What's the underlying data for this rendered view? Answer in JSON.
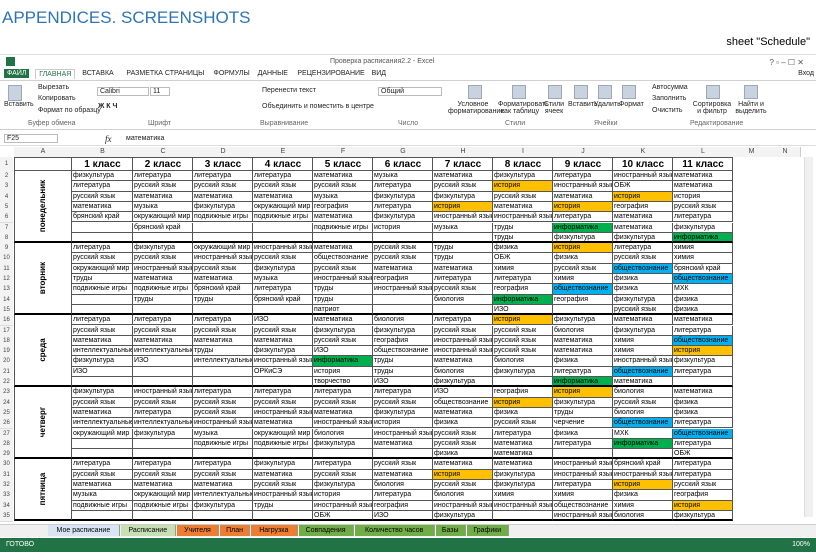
{
  "header": {
    "title": "APPENDICES. SCREENSHOTS",
    "caption": "sheet \"Schedule\""
  },
  "window": {
    "title": "Проверка расписания2.2 - Excel",
    "sign_in": "Вход",
    "tabs": [
      "ФАЙЛ",
      "ГЛАВНАЯ",
      "ВСТАВКА",
      "РАЗМЕТКА СТРАНИЦЫ",
      "ФОРМУЛЫ",
      "ДАННЫЕ",
      "РЕЦЕНЗИРОВАНИЕ",
      "ВИД"
    ]
  },
  "ribbon": {
    "clipboard": {
      "paste": "Вставить",
      "cut": "Вырезать",
      "copy": "Копировать",
      "format_painter": "Формат по образцу",
      "group": "Буфер обмена"
    },
    "font": {
      "name": "Calibri",
      "size": "11",
      "group": "Шрифт"
    },
    "alignment": {
      "wrap": "Перенести текст",
      "merge": "Объединить и поместить в центре",
      "group": "Выравнивание"
    },
    "number": {
      "format": "Общий",
      "group": "Число"
    },
    "styles": {
      "conditional": "Условное форматирование",
      "as_table": "Форматировать как таблицу",
      "cell_styles": "Стили ячеек",
      "group": "Стили"
    },
    "cells": {
      "insert": "Вставить",
      "delete": "Удалить",
      "format": "Формат",
      "group": "Ячейки"
    },
    "editing": {
      "autosum": "Автосумма",
      "fill": "Заполнить",
      "clear": "Очистить",
      "sort": "Сортировка и фильтр",
      "find": "Найти и выделить",
      "group": "Редактирование"
    }
  },
  "formula_bar": {
    "cell": "F25",
    "fx": "fx",
    "formula": "математика"
  },
  "sheet": {
    "columns": [
      "A",
      "B",
      "C",
      "D",
      "E",
      "F",
      "G",
      "H",
      "I",
      "J",
      "K",
      "L",
      "M",
      "N"
    ],
    "row_numbers": [
      1,
      2,
      3,
      4,
      5,
      6,
      7,
      8,
      9,
      10,
      11,
      12,
      13,
      14,
      15,
      16,
      17,
      18,
      19,
      20,
      21,
      22,
      23,
      24,
      25,
      26,
      27,
      28,
      29,
      30,
      31,
      32,
      33,
      34,
      35
    ],
    "class_headers": [
      "1 класс",
      "2 класс",
      "3 класс",
      "4 класс",
      "5 класс",
      "6 класс",
      "7 класс",
      "8 класс",
      "9 класс",
      "10 класс",
      "11 класс"
    ],
    "days": [
      {
        "label": "понедельник",
        "rows": [
          [
            "физкультура",
            "литература",
            "литература",
            "литература",
            "математика",
            "музыка",
            "математика",
            "физкультура",
            "литература",
            "иностранный язык",
            "математика"
          ],
          [
            "литература",
            "русский язык",
            "русский язык",
            "русский язык",
            "русский язык",
            "литература",
            "русский язык",
            {
              "text": "история",
              "fill": "#ffc000"
            },
            "иностранный язык",
            "ОБЖ",
            "математика"
          ],
          [
            "русский язык",
            "математика",
            "математика",
            "математика",
            "музыка",
            "физкультура",
            "физкультура",
            "русский язык",
            "математика",
            {
              "text": "история",
              "fill": "#ffc000"
            },
            "история"
          ],
          [
            "математика",
            "музыка",
            "физкультура",
            "окружающий мир",
            "география",
            "литература",
            {
              "text": "история",
              "fill": "#ffc000"
            },
            "математика",
            {
              "text": "история",
              "fill": "#ffc000"
            },
            "география",
            "русский язык"
          ],
          [
            "брянский край",
            "окружающий мир",
            "подвижные игры",
            "подвижные игры",
            "математика",
            "физкультура",
            "иностранный язык",
            "иностранный язык",
            "литература",
            "математика",
            "литература"
          ],
          [
            null,
            "брянский край",
            null,
            null,
            "подвижные игры",
            "история",
            "музыка",
            "труды",
            {
              "text": "информатика",
              "fill": "#00b050"
            },
            "математика",
            "физкультура"
          ],
          [
            null,
            null,
            null,
            null,
            null,
            null,
            null,
            "труды",
            "физкультура",
            "физкультура",
            {
              "text": "информатика",
              "fill": "#00b050"
            }
          ]
        ]
      },
      {
        "label": "вторник",
        "rows": [
          [
            "литература",
            "физкультура",
            "окружающий мир",
            "иностранный язык",
            "математика",
            "русский язык",
            "труды",
            "физика",
            {
              "text": "история",
              "fill": "#ffc000"
            },
            "литература",
            "химия"
          ],
          [
            "русский язык",
            "русский язык",
            "иностранный язык",
            "русский язык",
            "обществознание",
            "русский язык",
            "труды",
            "ОБЖ",
            "физика",
            "русский язык",
            "химия"
          ],
          [
            "окружающий мир",
            "иностранный язык",
            "русский язык",
            "физкультура",
            "русский язык",
            "математика",
            "математика",
            "химия",
            "русский язык",
            {
              "text": "обществознание",
              "fill": "#00b0f0"
            },
            "брянский край"
          ],
          [
            "труды",
            "математика",
            "математика",
            "музыка",
            "иностранный язык",
            "география",
            "литература",
            "литература",
            "химия",
            "физика",
            {
              "text": "обществознание",
              "fill": "#00b0f0"
            }
          ],
          [
            "подвижные игры",
            "подвижные игры",
            "брянский край",
            "литература",
            "труды",
            "иностранный язык",
            "русский язык",
            "география",
            {
              "text": "обществознание",
              "fill": "#00b0f0"
            },
            "физика",
            "МХК"
          ],
          [
            null,
            "труды",
            "труды",
            "брянский край",
            "труды",
            null,
            "биология",
            {
              "text": "информатика",
              "fill": "#00b050"
            },
            "география",
            "физкультура",
            "физика"
          ],
          [
            null,
            null,
            null,
            null,
            "патриот",
            null,
            null,
            "ИЗО",
            null,
            "русский язык",
            "физика"
          ]
        ]
      },
      {
        "label": "среда",
        "rows": [
          [
            "литература",
            "литература",
            "литература",
            "ИЗО",
            "математика",
            "биология",
            "литература",
            {
              "text": "история",
              "fill": "#ffc000"
            },
            "физкультура",
            "математика",
            "математика"
          ],
          [
            "русский язык",
            "русский язык",
            "русский язык",
            "русский язык",
            "физкультура",
            "физкультура",
            "русский язык",
            "русский язык",
            "биология",
            "физкультура",
            "литература"
          ],
          [
            "математика",
            "математика",
            "математика",
            "математика",
            "русский язык",
            "география",
            "иностранный язык",
            "русский язык",
            "математика",
            "химия",
            {
              "text": "обществознание",
              "fill": "#00b0f0"
            }
          ],
          [
            "интеллектуальные",
            "интеллектуальные",
            "труды",
            "физкультура",
            "ИЗО",
            "обществознание",
            "иностранный язык",
            "русский язык",
            "математика",
            "химия",
            {
              "text": "история",
              "fill": "#ffc000"
            }
          ],
          [
            "физкультура",
            "ИЗО",
            "интеллектуальные",
            "иностранный язык",
            {
              "text": "информатика",
              "fill": "#00b050"
            },
            "труды",
            "математика",
            "биология",
            "физика",
            "иностранный язык",
            "физкультура"
          ],
          [
            "ИЗО",
            null,
            null,
            "ОРКиСЭ",
            "история",
            "труды",
            "биология",
            "физкультура",
            "литература",
            {
              "text": "обществознание",
              "fill": "#00b0f0"
            },
            "литература"
          ],
          [
            null,
            null,
            null,
            null,
            "творчество",
            "ИЗО",
            "физкультура",
            null,
            {
              "text": "информатика",
              "fill": "#00b050"
            },
            "математика",
            null
          ]
        ]
      },
      {
        "label": "четверг",
        "rows": [
          [
            "физкультура",
            "иностранный язык",
            "литература",
            "литература",
            "литература",
            "литература",
            "ИЗО",
            "география",
            {
              "text": "история",
              "fill": "#ffc000"
            },
            "биология",
            "математика"
          ],
          [
            "русский язык",
            "русский язык",
            "русский язык",
            "русский язык",
            "русский язык",
            "русский язык",
            "обществознание",
            {
              "text": "история",
              "fill": "#ffc000"
            },
            "физкультура",
            "русский язык",
            "физика"
          ],
          [
            "математика",
            "литература",
            "русский язык",
            "иностранный язык",
            "математика",
            "физкультура",
            "математика",
            "физика",
            "труды",
            "биология",
            "физика"
          ],
          [
            "интеллектуальные",
            "интеллектуальные",
            "иностранный язык",
            "математика",
            "иностранный язык",
            "история",
            "физика",
            "русский язык",
            "черчение",
            {
              "text": "обществознание",
              "fill": "#00b0f0"
            },
            "литература"
          ],
          [
            "окружающий мир",
            "физкультура",
            "музыка",
            "окружающий мир",
            "биология",
            "иностранный язык",
            "русский язык",
            "литература",
            "физика",
            "МХК",
            {
              "text": "обществознание",
              "fill": "#00b0f0"
            }
          ],
          [
            null,
            null,
            "подвижные игры",
            "подвижные игры",
            "физкультура",
            "математика",
            "русский язык",
            "математика",
            "литература",
            {
              "text": "информатика",
              "fill": "#00b050"
            },
            "литература"
          ],
          [
            null,
            null,
            null,
            null,
            null,
            null,
            "физика",
            "математика",
            null,
            null,
            "ОБЖ"
          ]
        ]
      },
      {
        "label": "пятница",
        "rows": [
          [
            "литература",
            "литература",
            "литература",
            "физкультура",
            "литература",
            "русский язык",
            "математика",
            "математика",
            "иностранный язык",
            "брянский край",
            "литература"
          ],
          [
            "русский язык",
            "русский язык",
            "русский язык",
            "математика",
            "русский язык",
            "математика",
            {
              "text": "история",
              "fill": "#ffc000"
            },
            "физкультура",
            "иностранный язык",
            "иностранный язык",
            "литература"
          ],
          [
            "математика",
            "математика",
            "математика",
            "русский язык",
            "физкультура",
            "биология",
            "русский язык",
            "физкультура",
            "литература",
            {
              "text": "история",
              "fill": "#ffc000"
            },
            "русский язык"
          ],
          [
            "музыка",
            "окружающий мир",
            "интеллектуальные",
            "иностранный язык",
            "история",
            "литература",
            "биология",
            "химия",
            "химия",
            "физика",
            "география"
          ],
          [
            "подвижные игры",
            "подвижные игры",
            "физкультура",
            "труды",
            "иностранный язык",
            "география",
            "иностранный язык",
            "иностранный язык",
            "обществознание",
            "химия",
            {
              "text": "история",
              "fill": "#ffc000"
            }
          ],
          [
            null,
            null,
            null,
            null,
            "ОБЖ",
            "ИЗО",
            "физкультура",
            null,
            "иностранный язык",
            "биология",
            "физкультура"
          ]
        ]
      }
    ]
  },
  "sheet_tabs": [
    {
      "name": "Мое расписание",
      "color": "#d9e5f5"
    },
    {
      "name": "Расписание",
      "color": "#c6e0b4"
    },
    {
      "name": "Учителя",
      "color": "#ed7d31"
    },
    {
      "name": "План",
      "color": "#ed7d31"
    },
    {
      "name": "Нагрузка",
      "color": "#ed7d31"
    },
    {
      "name": "Совпадения",
      "color": "#70ad47"
    },
    {
      "name": "Количество часов",
      "color": "#70ad47"
    },
    {
      "name": "Базы",
      "color": "#70ad47"
    },
    {
      "name": "Графики",
      "color": "#70ad47"
    }
  ],
  "status": {
    "ready": "ГОТОВО",
    "zoom": "100%"
  }
}
